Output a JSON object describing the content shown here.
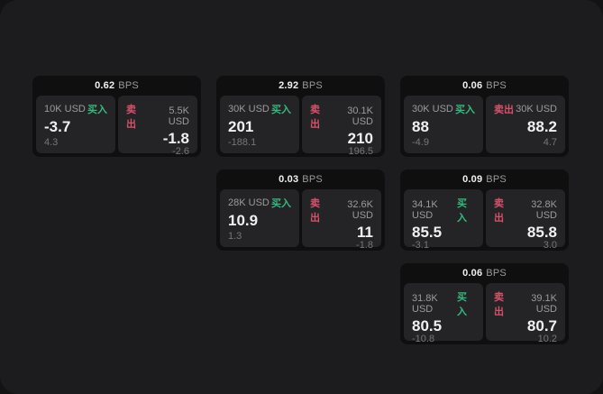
{
  "theme": {
    "outer_bg": "#131313",
    "screen_bg": "#1c1c1e",
    "card_bg": "#0f0f10",
    "panel_bg": "#242427",
    "text_primary": "#f0f0f0",
    "text_muted": "#9b9b9b",
    "text_dim": "#767676",
    "buy_color": "#36b97e",
    "sell_color": "#d8516b"
  },
  "labels": {
    "bps_unit": "BPS",
    "buy": "买入",
    "sell": "卖出"
  },
  "cards": [
    {
      "row": 0,
      "col": 0,
      "spread_bps": "0.62",
      "buy": {
        "amount": "10K USD",
        "price": "-3.7",
        "change": "4.3"
      },
      "sell": {
        "amount": "5.5K USD",
        "price": "-1.8",
        "change": "-2.6"
      }
    },
    {
      "row": 0,
      "col": 1,
      "spread_bps": "2.92",
      "buy": {
        "amount": "30K USD",
        "price": "201",
        "change": "-188.1"
      },
      "sell": {
        "amount": "30.1K USD",
        "price": "210",
        "change": "196.5"
      }
    },
    {
      "row": 0,
      "col": 2,
      "spread_bps": "0.06",
      "buy": {
        "amount": "30K USD",
        "price": "88",
        "change": "-4.9"
      },
      "sell": {
        "amount": "30K USD",
        "price": "88.2",
        "change": "4.7"
      }
    },
    {
      "row": 1,
      "col": 1,
      "spread_bps": "0.03",
      "buy": {
        "amount": "28K USD",
        "price": "10.9",
        "change": "1.3"
      },
      "sell": {
        "amount": "32.6K USD",
        "price": "11",
        "change": "-1.8"
      }
    },
    {
      "row": 1,
      "col": 2,
      "spread_bps": "0.09",
      "buy": {
        "amount": "34.1K USD",
        "price": "85.5",
        "change": "-3.1"
      },
      "sell": {
        "amount": "32.8K USD",
        "price": "85.8",
        "change": "3.0"
      }
    },
    {
      "row": 2,
      "col": 2,
      "spread_bps": "0.06",
      "buy": {
        "amount": "31.8K USD",
        "price": "80.5",
        "change": "-10.8"
      },
      "sell": {
        "amount": "39.1K USD",
        "price": "80.7",
        "change": "10.2"
      }
    }
  ]
}
